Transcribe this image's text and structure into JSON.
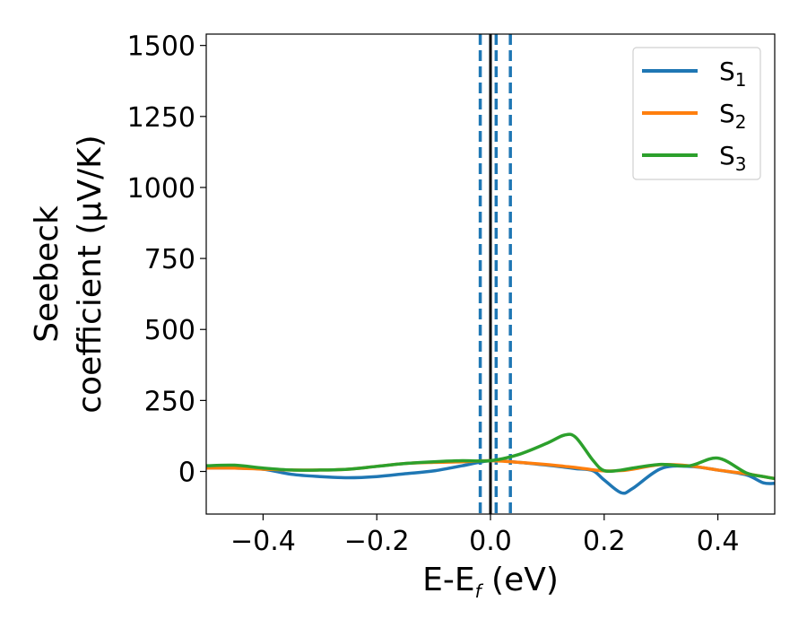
{
  "chart_data": {
    "type": "line",
    "xlabel": {
      "main": "E-E",
      "sub": "f",
      "unit": " (eV)"
    },
    "ylabel": {
      "line1": "Seebeck",
      "line2": "coefficient  (μV/K)"
    },
    "xlim": [
      -0.5,
      0.5
    ],
    "ylim": [
      -150,
      1540
    ],
    "xticks": [
      -0.4,
      -0.2,
      0.0,
      0.2,
      0.4
    ],
    "xtick_labels": [
      "−0.4",
      "−0.2",
      "0.0",
      "0.2",
      "0.4"
    ],
    "yticks": [
      0,
      250,
      500,
      750,
      1000,
      1250,
      1500
    ],
    "ytick_labels": [
      "0",
      "250",
      "500",
      "750",
      "1000",
      "1250",
      "1500"
    ],
    "grid": false,
    "legend_position": "top-right",
    "vertical_lines": [
      {
        "x": 0.0,
        "style": "solid",
        "color": "#000000"
      },
      {
        "x": -0.018,
        "style": "dashed",
        "color": "#1f77b4"
      },
      {
        "x": 0.01,
        "style": "dashed",
        "color": "#1f77b4"
      },
      {
        "x": 0.035,
        "style": "dashed",
        "color": "#1f77b4"
      }
    ],
    "x": [
      -0.5,
      -0.45,
      -0.4,
      -0.35,
      -0.3,
      -0.25,
      -0.2,
      -0.15,
      -0.1,
      -0.05,
      0.0,
      0.05,
      0.1,
      0.13,
      0.15,
      0.18,
      0.2,
      0.23,
      0.25,
      0.3,
      0.35,
      0.4,
      0.45,
      0.48,
      0.5
    ],
    "series": [
      {
        "name": "S",
        "sub": "1",
        "color": "#1f77b4",
        "values": [
          12,
          12,
          8,
          -10,
          -18,
          -22,
          -18,
          -8,
          2,
          20,
          38,
          32,
          22,
          15,
          10,
          3,
          -30,
          -75,
          -60,
          10,
          18,
          5,
          -12,
          -40,
          -42
        ]
      },
      {
        "name": "S",
        "sub": "2",
        "color": "#ff7f0e",
        "values": [
          12,
          12,
          8,
          5,
          5,
          8,
          18,
          28,
          32,
          34,
          38,
          32,
          24,
          18,
          14,
          6,
          2,
          3,
          8,
          24,
          20,
          5,
          -8,
          -18,
          -25
        ]
      },
      {
        "name": "S",
        "sub": "3",
        "color": "#2ca02c",
        "values": [
          20,
          22,
          12,
          5,
          5,
          8,
          18,
          28,
          34,
          38,
          38,
          60,
          100,
          128,
          120,
          40,
          3,
          5,
          12,
          25,
          20,
          47,
          -5,
          -18,
          -25
        ]
      }
    ]
  }
}
